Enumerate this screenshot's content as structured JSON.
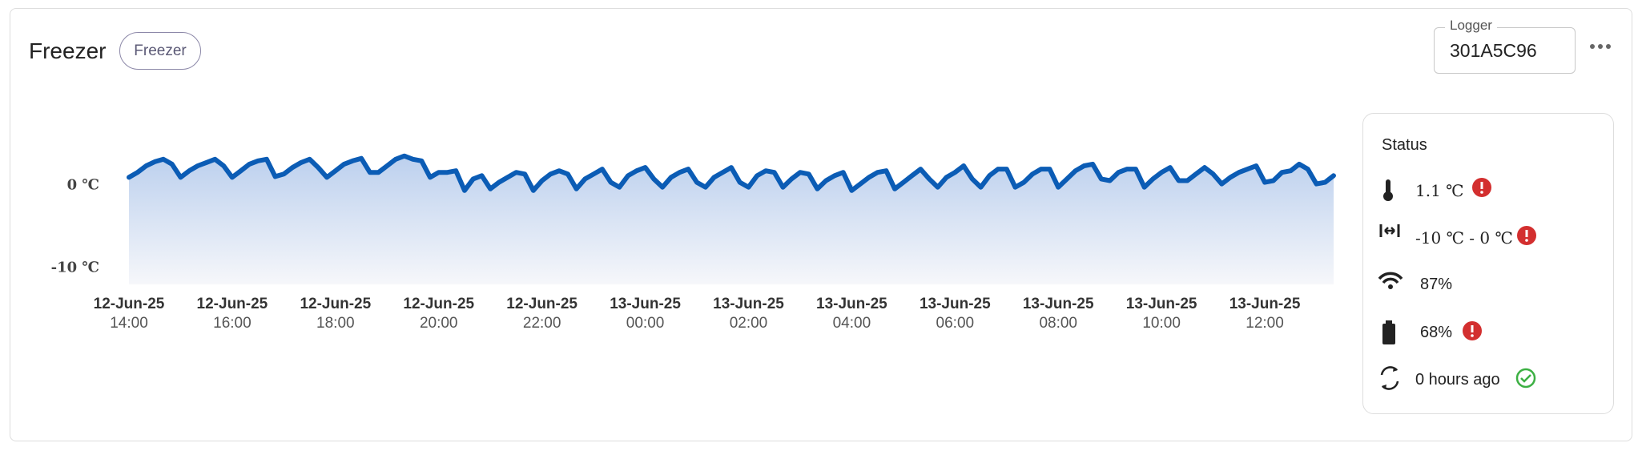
{
  "header": {
    "title": "Freezer",
    "tag": "Freezer",
    "logger_label": "Logger",
    "logger_id": "301A5C96"
  },
  "chart_data": {
    "type": "line",
    "color": "#0b5cb5",
    "x": [
      "12-Jun-25 14:00",
      "12-Jun-25 14:10",
      "12-Jun-25 14:20",
      "12-Jun-25 14:30",
      "12-Jun-25 14:40",
      "12-Jun-25 14:50",
      "12-Jun-25 15:00",
      "12-Jun-25 15:10",
      "12-Jun-25 15:20",
      "12-Jun-25 15:30",
      "12-Jun-25 15:40",
      "12-Jun-25 15:50",
      "12-Jun-25 16:00",
      "12-Jun-25 16:10",
      "12-Jun-25 16:20",
      "12-Jun-25 16:30",
      "12-Jun-25 16:40",
      "12-Jun-25 16:50",
      "12-Jun-25 17:00",
      "12-Jun-25 17:10",
      "12-Jun-25 17:20",
      "12-Jun-25 17:30",
      "12-Jun-25 17:40",
      "12-Jun-25 17:50",
      "12-Jun-25 18:00",
      "12-Jun-25 18:10",
      "12-Jun-25 18:20",
      "12-Jun-25 18:30",
      "12-Jun-25 18:40",
      "12-Jun-25 18:50",
      "12-Jun-25 19:00",
      "12-Jun-25 19:10",
      "12-Jun-25 19:20",
      "12-Jun-25 19:30",
      "12-Jun-25 19:40",
      "12-Jun-25 19:50",
      "12-Jun-25 20:00",
      "12-Jun-25 20:10",
      "12-Jun-25 20:20",
      "12-Jun-25 20:30",
      "12-Jun-25 20:40",
      "12-Jun-25 20:50",
      "12-Jun-25 21:00",
      "12-Jun-25 21:10",
      "12-Jun-25 21:20",
      "12-Jun-25 21:30",
      "12-Jun-25 21:40",
      "12-Jun-25 21:50",
      "12-Jun-25 22:00",
      "12-Jun-25 22:10",
      "12-Jun-25 22:20",
      "12-Jun-25 22:30",
      "12-Jun-25 22:40",
      "12-Jun-25 22:50",
      "12-Jun-25 23:00",
      "12-Jun-25 23:10",
      "12-Jun-25 23:20",
      "12-Jun-25 23:30",
      "12-Jun-25 23:40",
      "12-Jun-25 23:50",
      "13-Jun-25 00:00",
      "13-Jun-25 00:10",
      "13-Jun-25 00:20",
      "13-Jun-25 00:30",
      "13-Jun-25 00:40",
      "13-Jun-25 00:50",
      "13-Jun-25 01:00",
      "13-Jun-25 01:10",
      "13-Jun-25 01:20",
      "13-Jun-25 01:30",
      "13-Jun-25 01:40",
      "13-Jun-25 01:50",
      "13-Jun-25 02:00",
      "13-Jun-25 02:10",
      "13-Jun-25 02:20",
      "13-Jun-25 02:30",
      "13-Jun-25 02:40",
      "13-Jun-25 02:50",
      "13-Jun-25 03:00",
      "13-Jun-25 03:10",
      "13-Jun-25 03:20",
      "13-Jun-25 03:30",
      "13-Jun-25 03:40",
      "13-Jun-25 03:50",
      "13-Jun-25 04:00",
      "13-Jun-25 04:10",
      "13-Jun-25 04:20",
      "13-Jun-25 04:30",
      "13-Jun-25 04:40",
      "13-Jun-25 04:50",
      "13-Jun-25 05:00",
      "13-Jun-25 05:10",
      "13-Jun-25 05:20",
      "13-Jun-25 05:30",
      "13-Jun-25 05:40",
      "13-Jun-25 05:50",
      "13-Jun-25 06:00",
      "13-Jun-25 06:10",
      "13-Jun-25 06:20",
      "13-Jun-25 06:30",
      "13-Jun-25 06:40",
      "13-Jun-25 06:50",
      "13-Jun-25 07:00",
      "13-Jun-25 07:10",
      "13-Jun-25 07:20",
      "13-Jun-25 07:30",
      "13-Jun-25 07:40",
      "13-Jun-25 07:50",
      "13-Jun-25 08:00",
      "13-Jun-25 08:10",
      "13-Jun-25 08:20",
      "13-Jun-25 08:30",
      "13-Jun-25 08:40",
      "13-Jun-25 08:50",
      "13-Jun-25 09:00",
      "13-Jun-25 09:10",
      "13-Jun-25 09:20",
      "13-Jun-25 09:30",
      "13-Jun-25 09:40",
      "13-Jun-25 09:50",
      "13-Jun-25 10:00",
      "13-Jun-25 10:10",
      "13-Jun-25 10:20",
      "13-Jun-25 10:30",
      "13-Jun-25 10:40",
      "13-Jun-25 10:50",
      "13-Jun-25 11:00",
      "13-Jun-25 11:10",
      "13-Jun-25 11:20",
      "13-Jun-25 11:30",
      "13-Jun-25 11:40",
      "13-Jun-25 11:50",
      "13-Jun-25 12:00",
      "13-Jun-25 12:10",
      "13-Jun-25 12:20",
      "13-Jun-25 12:30",
      "13-Jun-25 12:40",
      "13-Jun-25 12:50",
      "13-Jun-25 13:00",
      "13-Jun-25 13:10",
      "13-Jun-25 13:20"
    ],
    "values": [
      1.0,
      1.6,
      2.4,
      2.9,
      3.2,
      2.6,
      1.0,
      1.8,
      2.4,
      2.8,
      3.2,
      2.4,
      1.0,
      1.8,
      2.6,
      3.0,
      3.2,
      1.1,
      1.4,
      2.2,
      2.8,
      3.2,
      2.2,
      1.0,
      1.8,
      2.6,
      3.0,
      3.3,
      1.6,
      1.6,
      2.4,
      3.2,
      3.6,
      3.2,
      3.0,
      1.0,
      1.6,
      1.6,
      1.8,
      -0.6,
      0.8,
      1.2,
      -0.4,
      0.4,
      1.0,
      1.6,
      1.4,
      -0.6,
      0.6,
      1.4,
      1.8,
      1.4,
      -0.4,
      0.8,
      1.4,
      2.0,
      0.4,
      -0.2,
      1.2,
      1.8,
      2.2,
      0.8,
      -0.2,
      1.0,
      1.6,
      2.0,
      0.4,
      -0.2,
      1.0,
      1.6,
      2.2,
      0.4,
      -0.2,
      1.2,
      1.8,
      1.6,
      -0.2,
      0.8,
      1.6,
      1.4,
      -0.4,
      0.6,
      1.2,
      1.6,
      -0.6,
      0.2,
      1.0,
      1.6,
      1.8,
      -0.4,
      0.4,
      1.2,
      2.0,
      0.8,
      -0.2,
      1.0,
      1.6,
      2.4,
      0.8,
      -0.2,
      1.2,
      2.0,
      2.0,
      -0.2,
      0.4,
      1.4,
      2.0,
      2.0,
      -0.2,
      0.8,
      1.8,
      2.4,
      2.6,
      0.8,
      0.6,
      1.6,
      2.0,
      2.0,
      -0.2,
      0.8,
      1.6,
      2.2,
      0.6,
      0.6,
      1.4,
      2.2,
      1.4,
      0.2,
      1.0,
      1.6,
      2.0,
      2.4,
      0.4,
      0.6,
      1.6,
      1.8,
      2.6,
      2.0,
      0.2,
      0.4,
      1.2
    ],
    "xlim": [
      "12-Jun-25 14:00",
      "13-Jun-25 13:20"
    ],
    "xticks": [
      "12-Jun-25 14:00",
      "12-Jun-25 16:00",
      "12-Jun-25 18:00",
      "12-Jun-25 20:00",
      "12-Jun-25 22:00",
      "13-Jun-25 00:00",
      "13-Jun-25 02:00",
      "13-Jun-25 04:00",
      "13-Jun-25 06:00",
      "13-Jun-25 08:00",
      "13-Jun-25 10:00",
      "13-Jun-25 12:00"
    ],
    "ylim": [
      -12,
      6
    ],
    "yticks": [
      {
        "value": 0,
        "label": "0 ℃"
      },
      {
        "value": -10,
        "label": "-10 ℃"
      }
    ],
    "grid": true
  },
  "status": {
    "title": "Status",
    "temperature": "1.1 ℃",
    "range": "-10 ℃ - 0 ℃",
    "signal": "87%",
    "battery": "68%",
    "last_sync": "0 hours ago"
  }
}
